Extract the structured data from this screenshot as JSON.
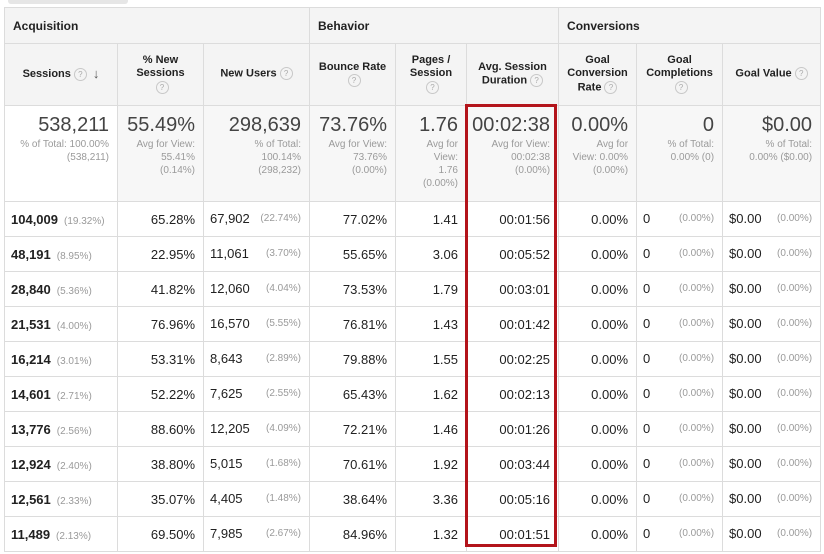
{
  "groups": {
    "acquisition": "Acquisition",
    "behavior": "Behavior",
    "conversions": "Conversions"
  },
  "columns": {
    "sessions": "Sessions",
    "new_sessions": "% New Sessions",
    "new_users": "New Users",
    "bounce_rate": "Bounce Rate",
    "pages_session": "Pages / Session",
    "avg_duration": "Avg. Session Duration",
    "goal_rate": "Goal Conversion Rate",
    "goal_completions": "Goal Completions",
    "goal_value": "Goal Value"
  },
  "help_icon": "?",
  "totals": {
    "sessions": {
      "value": "538,211",
      "sub1": "% of Total: 100.00%",
      "sub2": "(538,211)"
    },
    "new_sessions": {
      "value": "55.49%",
      "sub1": "Avg for View:",
      "sub2": "55.41%",
      "sub3": "(0.14%)"
    },
    "new_users": {
      "value": "298,639",
      "sub1": "% of Total:",
      "sub2": "100.14%",
      "sub3": "(298,232)"
    },
    "bounce_rate": {
      "value": "73.76%",
      "sub1": "Avg for View:",
      "sub2": "73.76%",
      "sub3": "(0.00%)"
    },
    "pages_session": {
      "value": "1.76",
      "sub1": "Avg for",
      "sub2": "View:",
      "sub3": "1.76",
      "sub4": "(0.00%)"
    },
    "avg_duration": {
      "value": "00:02:38",
      "sub1": "Avg for View:",
      "sub2": "00:02:38",
      "sub3": "(0.00%)"
    },
    "goal_rate": {
      "value": "0.00%",
      "sub1": "Avg for",
      "sub2": "View: 0.00%",
      "sub3": "(0.00%)"
    },
    "goal_completions": {
      "value": "0",
      "sub1": "% of Total:",
      "sub2": "0.00% (0)"
    },
    "goal_value": {
      "value": "$0.00",
      "sub1": "% of Total:",
      "sub2": "0.00% ($0.00)"
    }
  },
  "rows": [
    {
      "sessions": "104,009",
      "sessions_pct": "(19.32%)",
      "new_sessions": "65.28%",
      "new_users": "67,902",
      "new_users_pct": "(22.74%)",
      "bounce": "77.02%",
      "pages": "1.41",
      "duration": "00:01:56",
      "goal_rate": "0.00%",
      "goal_comp": "0",
      "goal_comp_pct": "(0.00%)",
      "goal_value": "$0.00",
      "goal_value_pct": "(0.00%)"
    },
    {
      "sessions": "48,191",
      "sessions_pct": "(8.95%)",
      "new_sessions": "22.95%",
      "new_users": "11,061",
      "new_users_pct": "(3.70%)",
      "bounce": "55.65%",
      "pages": "3.06",
      "duration": "00:05:52",
      "goal_rate": "0.00%",
      "goal_comp": "0",
      "goal_comp_pct": "(0.00%)",
      "goal_value": "$0.00",
      "goal_value_pct": "(0.00%)"
    },
    {
      "sessions": "28,840",
      "sessions_pct": "(5.36%)",
      "new_sessions": "41.82%",
      "new_users": "12,060",
      "new_users_pct": "(4.04%)",
      "bounce": "73.53%",
      "pages": "1.79",
      "duration": "00:03:01",
      "goal_rate": "0.00%",
      "goal_comp": "0",
      "goal_comp_pct": "(0.00%)",
      "goal_value": "$0.00",
      "goal_value_pct": "(0.00%)"
    },
    {
      "sessions": "21,531",
      "sessions_pct": "(4.00%)",
      "new_sessions": "76.96%",
      "new_users": "16,570",
      "new_users_pct": "(5.55%)",
      "bounce": "76.81%",
      "pages": "1.43",
      "duration": "00:01:42",
      "goal_rate": "0.00%",
      "goal_comp": "0",
      "goal_comp_pct": "(0.00%)",
      "goal_value": "$0.00",
      "goal_value_pct": "(0.00%)"
    },
    {
      "sessions": "16,214",
      "sessions_pct": "(3.01%)",
      "new_sessions": "53.31%",
      "new_users": "8,643",
      "new_users_pct": "(2.89%)",
      "bounce": "79.88%",
      "pages": "1.55",
      "duration": "00:02:25",
      "goal_rate": "0.00%",
      "goal_comp": "0",
      "goal_comp_pct": "(0.00%)",
      "goal_value": "$0.00",
      "goal_value_pct": "(0.00%)"
    },
    {
      "sessions": "14,601",
      "sessions_pct": "(2.71%)",
      "new_sessions": "52.22%",
      "new_users": "7,625",
      "new_users_pct": "(2.55%)",
      "bounce": "65.43%",
      "pages": "1.62",
      "duration": "00:02:13",
      "goal_rate": "0.00%",
      "goal_comp": "0",
      "goal_comp_pct": "(0.00%)",
      "goal_value": "$0.00",
      "goal_value_pct": "(0.00%)"
    },
    {
      "sessions": "13,776",
      "sessions_pct": "(2.56%)",
      "new_sessions": "88.60%",
      "new_users": "12,205",
      "new_users_pct": "(4.09%)",
      "bounce": "72.21%",
      "pages": "1.46",
      "duration": "00:01:26",
      "goal_rate": "0.00%",
      "goal_comp": "0",
      "goal_comp_pct": "(0.00%)",
      "goal_value": "$0.00",
      "goal_value_pct": "(0.00%)"
    },
    {
      "sessions": "12,924",
      "sessions_pct": "(2.40%)",
      "new_sessions": "38.80%",
      "new_users": "5,015",
      "new_users_pct": "(1.68%)",
      "bounce": "70.61%",
      "pages": "1.92",
      "duration": "00:03:44",
      "goal_rate": "0.00%",
      "goal_comp": "0",
      "goal_comp_pct": "(0.00%)",
      "goal_value": "$0.00",
      "goal_value_pct": "(0.00%)"
    },
    {
      "sessions": "12,561",
      "sessions_pct": "(2.33%)",
      "new_sessions": "35.07%",
      "new_users": "4,405",
      "new_users_pct": "(1.48%)",
      "bounce": "38.64%",
      "pages": "3.36",
      "duration": "00:05:16",
      "goal_rate": "0.00%",
      "goal_comp": "0",
      "goal_comp_pct": "(0.00%)",
      "goal_value": "$0.00",
      "goal_value_pct": "(0.00%)"
    },
    {
      "sessions": "11,489",
      "sessions_pct": "(2.13%)",
      "new_sessions": "69.50%",
      "new_users": "7,985",
      "new_users_pct": "(2.67%)",
      "bounce": "84.96%",
      "pages": "1.32",
      "duration": "00:01:51",
      "goal_rate": "0.00%",
      "goal_comp": "0",
      "goal_comp_pct": "(0.00%)",
      "goal_value": "$0.00",
      "goal_value_pct": "(0.00%)"
    }
  ],
  "colors": {
    "highlight": "#b3141b",
    "header_bg": "#f4f4f4",
    "muted": "#9a9a9a"
  }
}
